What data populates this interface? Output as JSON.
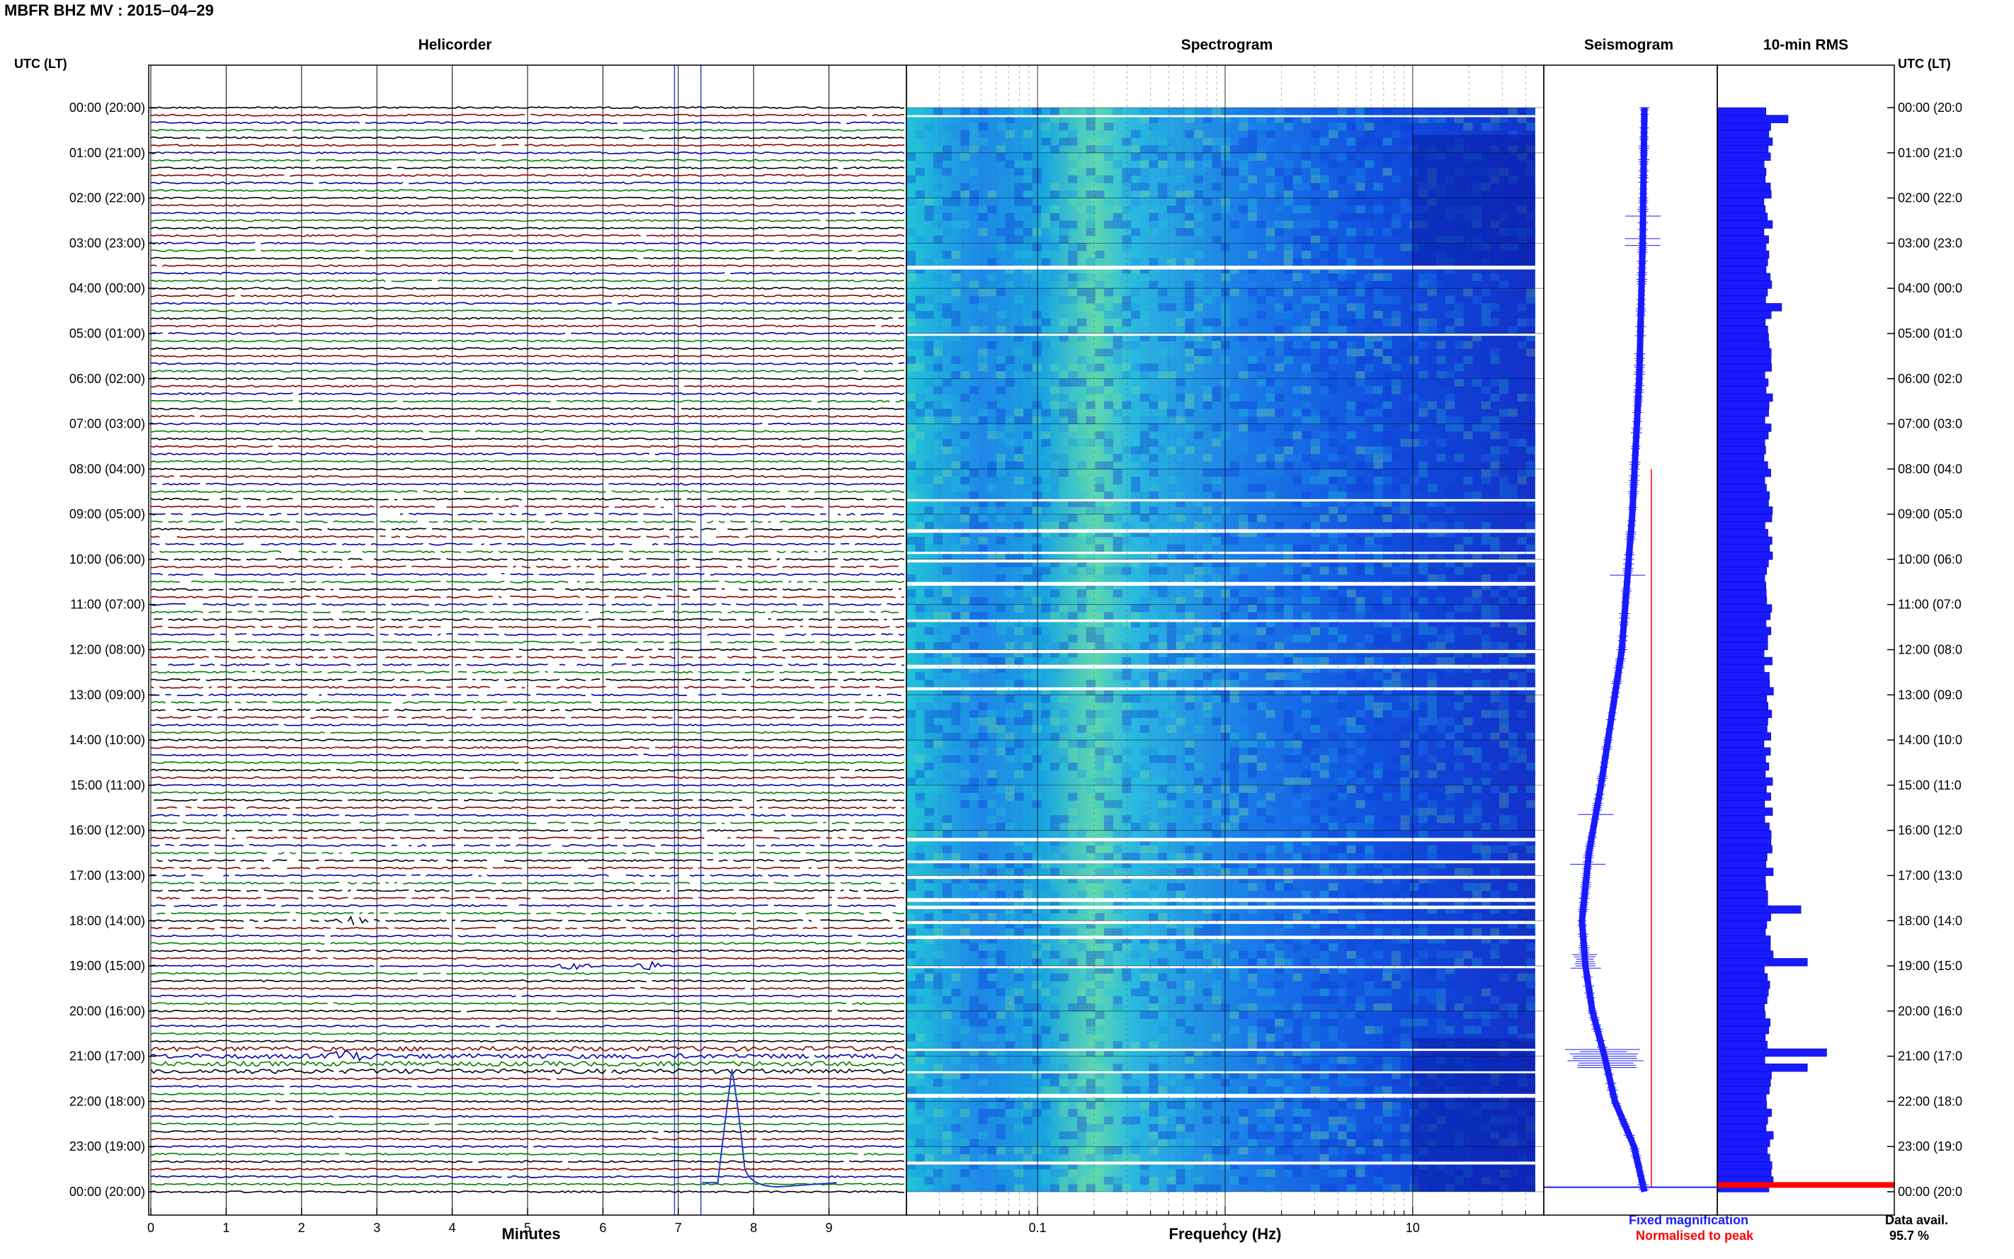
{
  "page_title": "MBFR BHZ MV : 2015–04–29",
  "left_axis_label": "UTC (LT)",
  "right_axis_label": "UTC (LT)",
  "time_labels": [
    "00:00 (20:00)",
    "01:00 (21:00)",
    "02:00 (22:00)",
    "03:00 (23:00)",
    "04:00 (00:00)",
    "05:00 (01:00)",
    "06:00 (02:00)",
    "07:00 (03:00)",
    "08:00 (04:00)",
    "09:00 (05:00)",
    "10:00 (06:00)",
    "11:00 (07:00)",
    "12:00 (08:00)",
    "13:00 (09:00)",
    "14:00 (10:00)",
    "15:00 (11:00)",
    "16:00 (12:00)",
    "17:00 (13:00)",
    "18:00 (14:00)",
    "19:00 (15:00)",
    "20:00 (16:00)",
    "21:00 (17:00)",
    "22:00 (18:00)",
    "23:00 (19:00)",
    "00:00 (20:00)"
  ],
  "right_time_labels": [
    "00:00 (20:0",
    "01:00 (21:0",
    "02:00 (22:0",
    "03:00 (23:0",
    "04:00 (00:0",
    "05:00 (01:0",
    "06:00 (02:0",
    "07:00 (03:0",
    "08:00 (04:0",
    "09:00 (05:0",
    "10:00 (06:0",
    "11:00 (07:0",
    "12:00 (08:0",
    "13:00 (09:0",
    "14:00 (10:0",
    "15:00 (11:0",
    "16:00 (12:0",
    "17:00 (13:0",
    "18:00 (14:0",
    "19:00 (15:0",
    "20:00 (16:0",
    "21:00 (17:0",
    "22:00 (18:0",
    "23:00 (19:0",
    "00:00 (20:0"
  ],
  "legend": {
    "fixed": "Fixed magnification",
    "normalised": "Normalised to peak",
    "fixed_color": "#1a1aff",
    "normalised_color": "#ff0000"
  },
  "data_availability": {
    "label": "Data avail.",
    "value": "95.7 %"
  },
  "chart_data": [
    {
      "type": "line",
      "title": "Helicorder",
      "xlabel": "Minutes",
      "ylabel": "",
      "x_ticks": [
        "0",
        "1",
        "2",
        "3",
        "4",
        "5",
        "6",
        "7",
        "8",
        "9"
      ],
      "xlim": [
        0,
        10
      ],
      "rows": 144,
      "trace_colors": [
        "#000000",
        "#8b0000",
        "#0000aa",
        "#008000"
      ],
      "bursts": [
        {
          "hour": 18.0,
          "minute": 2.7,
          "amplitude": 3.0
        },
        {
          "hour": 19.0,
          "minute": 5.6,
          "amplitude": 2.2
        },
        {
          "hour": 19.0,
          "minute": 6.6,
          "amplitude": 2.2
        },
        {
          "hour": 21.0,
          "minute": 2.6,
          "amplitude": 3.5
        }
      ],
      "gap_bands_hours": [
        [
          8.5,
          13.5
        ],
        [
          15.3,
          18.3
        ]
      ]
    },
    {
      "type": "heatmap",
      "title": "Spectrogram",
      "xlabel": "Frequency (Hz)",
      "ylabel": "",
      "x_scale": "log",
      "x_ticks": [
        "0.1",
        "1",
        "10"
      ],
      "xlim": [
        0.02,
        50
      ],
      "ylim_hours": [
        0,
        24
      ],
      "colormap": "jet-low"
    },
    {
      "type": "line",
      "title": "Seismogram",
      "xlabel": "",
      "ylabel": "",
      "trend_hours": [
        0,
        3,
        6,
        9,
        12,
        15,
        16.5,
        18,
        19,
        20,
        21,
        22,
        23,
        24
      ],
      "trend_offsets": [
        0.58,
        0.57,
        0.55,
        0.51,
        0.45,
        0.33,
        0.26,
        0.22,
        0.24,
        0.28,
        0.35,
        0.41,
        0.52,
        0.58
      ],
      "normalised_line_offset": 0.62
    },
    {
      "type": "bar",
      "title": "10-min RMS",
      "xlabel": "",
      "ylabel": "",
      "orientation": "horizontal",
      "bin_minutes": 10,
      "base_value": 0.16,
      "peaks": [
        {
          "hour": 0.1,
          "value": 0.22
        },
        {
          "hour": 4.3,
          "value": 0.2
        },
        {
          "hour": 17.7,
          "value": 0.26
        },
        {
          "hour": 18.8,
          "value": 0.28
        },
        {
          "hour": 20.9,
          "value": 0.34
        },
        {
          "hour": 21.1,
          "value": 0.28
        }
      ],
      "normalised_marker_hour": 23.85
    }
  ]
}
